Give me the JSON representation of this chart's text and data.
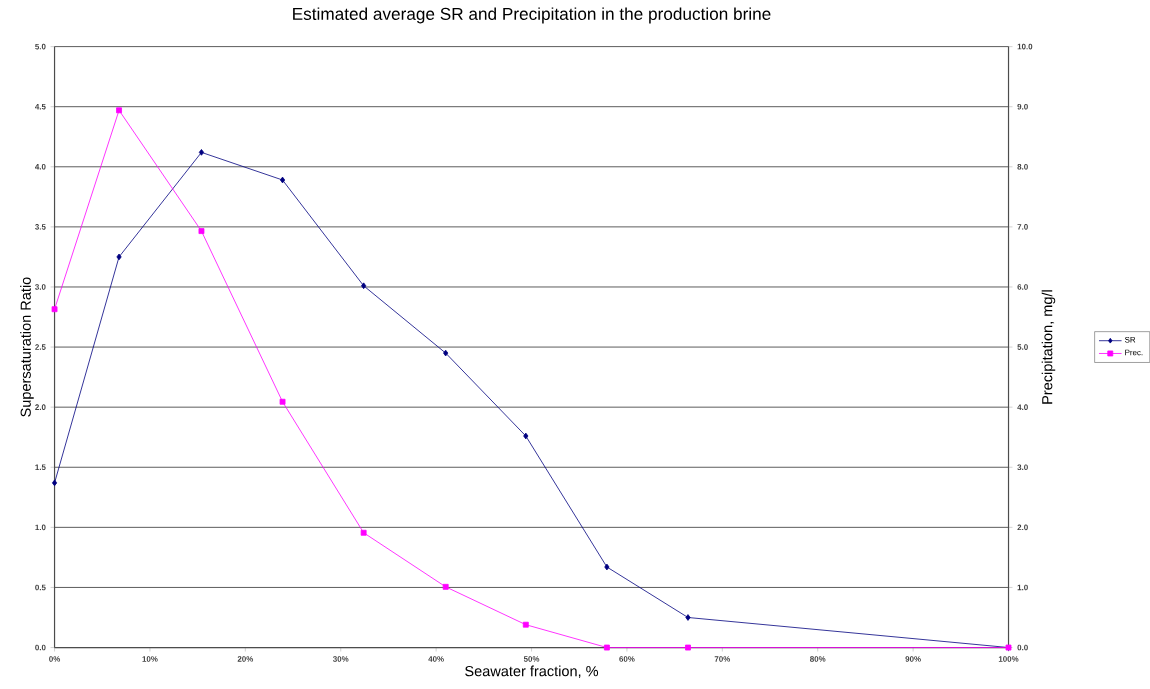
{
  "chart_data": {
    "type": "line",
    "title": "Estimated  average SR and Precipitation in the production brine",
    "xlabel": "Seawater fraction, %",
    "ylabel": "Supersaturation Ratio",
    "y2label": "Precipitation, mg/l",
    "x": [
      0,
      6.76,
      15.4,
      23.9,
      32.4,
      41.0,
      49.4,
      57.9,
      66.4,
      100
    ],
    "series": [
      {
        "name": "SR",
        "color": "#000080",
        "marker": "diamond",
        "values": [
          1.37,
          3.25,
          4.12,
          3.89,
          3.01,
          2.45,
          1.76,
          0.67,
          0.25,
          0
        ]
      },
      {
        "name": "Prec.",
        "color": "#ff00ff",
        "marker": "square",
        "axis": "y2",
        "values": [
          5.63,
          8.94,
          6.93,
          4.09,
          1.91,
          1.01,
          0.38,
          0,
          0,
          0
        ]
      }
    ],
    "xlim": [
      0,
      100
    ],
    "xticks": [
      {
        "value": 0,
        "label": "0%"
      },
      {
        "value": 10,
        "label": "10%"
      },
      {
        "value": 20,
        "label": "20%"
      },
      {
        "value": 30,
        "label": "30%"
      },
      {
        "value": 40,
        "label": "40%"
      },
      {
        "value": 50,
        "label": "50%"
      },
      {
        "value": 60,
        "label": "60%"
      },
      {
        "value": 70,
        "label": "70%"
      },
      {
        "value": 80,
        "label": "80%"
      },
      {
        "value": 90,
        "label": "90%"
      },
      {
        "value": 100,
        "label": "100%"
      }
    ],
    "ylim": [
      0,
      5
    ],
    "yticks": [
      {
        "value": 0,
        "label": "0.0"
      },
      {
        "value": 0.5,
        "label": "0.5"
      },
      {
        "value": 1,
        "label": "1.0"
      },
      {
        "value": 1.5,
        "label": "1.5"
      },
      {
        "value": 2,
        "label": "2.0"
      },
      {
        "value": 2.5,
        "label": "2.5"
      },
      {
        "value": 3,
        "label": "3.0"
      },
      {
        "value": 3.5,
        "label": "3.5"
      },
      {
        "value": 4,
        "label": "4.0"
      },
      {
        "value": 4.5,
        "label": "4.5"
      },
      {
        "value": 5,
        "label": "5.0"
      }
    ],
    "y2lim": [
      0,
      10
    ],
    "y2ticks": [
      {
        "value": 0,
        "label": "0.0"
      },
      {
        "value": 1,
        "label": "1.0"
      },
      {
        "value": 2,
        "label": "2.0"
      },
      {
        "value": 3,
        "label": "3.0"
      },
      {
        "value": 4,
        "label": "4.0"
      },
      {
        "value": 5,
        "label": "5.0"
      },
      {
        "value": 6,
        "label": "6.0"
      },
      {
        "value": 7,
        "label": "7.0"
      },
      {
        "value": 8,
        "label": "8.0"
      },
      {
        "value": 9,
        "label": "9.0"
      },
      {
        "value": 10,
        "label": "10.0"
      }
    ],
    "grid": "y",
    "legend": "right",
    "line_style": "solid"
  }
}
